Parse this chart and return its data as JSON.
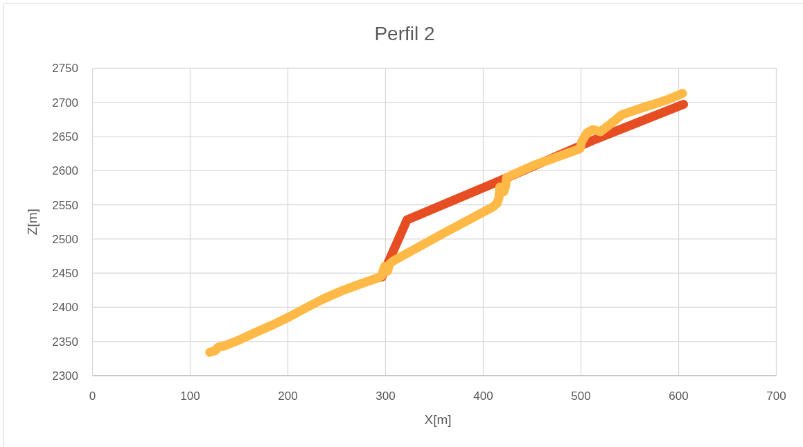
{
  "chart_data": {
    "type": "line",
    "title": "Perfil 2",
    "xlabel": "X[m]",
    "ylabel": "Z[m]",
    "xlim": [
      0,
      700
    ],
    "xticks": [
      0,
      100,
      200,
      300,
      400,
      500,
      600,
      700
    ],
    "ylim": [
      2300,
      2750
    ],
    "yticks": [
      2300,
      2350,
      2400,
      2450,
      2500,
      2550,
      2600,
      2650,
      2700,
      2750
    ],
    "grid": true,
    "line_style": "solid",
    "series": [
      {
        "color": "#e64d23",
        "x": [
          296,
          322,
          420,
          515,
          605
        ],
        "values": [
          2444,
          2528,
          2587,
          2646,
          2697
        ]
      },
      {
        "color": "#ffb947",
        "x": [
          120,
          126,
          129,
          134,
          150,
          165,
          184,
          200,
          217,
          236,
          255,
          274,
          292,
          296,
          299,
          302,
          304,
          308,
          359,
          410,
          414,
          416,
          417,
          421,
          423,
          424,
          452,
          468,
          499,
          501,
          506,
          512,
          520,
          530,
          542,
          563,
          587,
          604
        ],
        "values": [
          2334,
          2337,
          2342,
          2343,
          2352,
          2362,
          2374,
          2385,
          2398,
          2412,
          2424,
          2434,
          2443,
          2446,
          2460,
          2453,
          2463,
          2468,
          2508,
          2547,
          2552,
          2560,
          2576,
          2569,
          2578,
          2590,
          2608,
          2616,
          2632,
          2643,
          2655,
          2660,
          2657,
          2668,
          2682,
          2692,
          2703,
          2713
        ]
      }
    ]
  }
}
